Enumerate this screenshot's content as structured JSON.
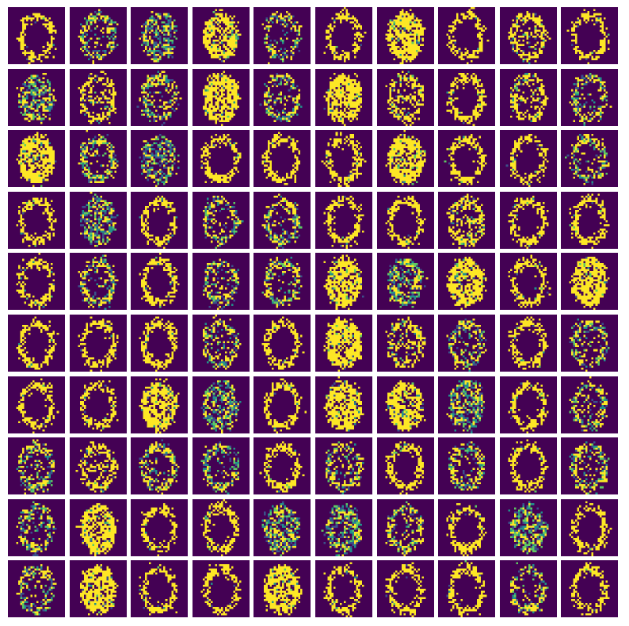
{
  "figure": {
    "rows": 10,
    "cols": 10,
    "pixels_per_side": 28,
    "colormap": {
      "background": "#440154",
      "low": "#3b528b",
      "mid": "#21918c",
      "high": "#5ec962",
      "peak": "#fde725"
    },
    "tile_kinds": [
      [
        "thin",
        "speck",
        "blob",
        "dense",
        "speck",
        "thin",
        "dense",
        "thin",
        "eight",
        "thin"
      ],
      [
        "blob",
        "eight",
        "speck",
        "dense",
        "speck",
        "dense",
        "eight",
        "thin",
        "eight",
        "speck"
      ],
      [
        "dense",
        "speck",
        "blob",
        "thin",
        "thin",
        "thin",
        "dense",
        "thin",
        "thin",
        "speck"
      ],
      [
        "thin",
        "blob",
        "thin",
        "speck",
        "speck",
        "thin",
        "thin",
        "eight",
        "thin",
        "thin"
      ],
      [
        "thin",
        "speck",
        "thin",
        "speck",
        "speck",
        "dense",
        "blob",
        "dense",
        "thin",
        "dense"
      ],
      [
        "thin",
        "thin",
        "thin",
        "speck",
        "thin",
        "dense",
        "eight",
        "speck",
        "thin",
        "speck"
      ],
      [
        "thin",
        "thin",
        "dense",
        "blob",
        "thin",
        "dense",
        "dense",
        "blob",
        "thin",
        "speck"
      ],
      [
        "speck",
        "eight",
        "speck",
        "speck",
        "thin",
        "speck",
        "thin",
        "speck",
        "thin",
        "speck"
      ],
      [
        "speck",
        "dense",
        "thin",
        "thin",
        "blob",
        "blob",
        "speck",
        "thin",
        "blob",
        "thin"
      ],
      [
        "speck",
        "dense",
        "thin",
        "thin",
        "dense",
        "thin",
        "thin",
        "thin",
        "speck",
        "thin"
      ]
    ]
  }
}
